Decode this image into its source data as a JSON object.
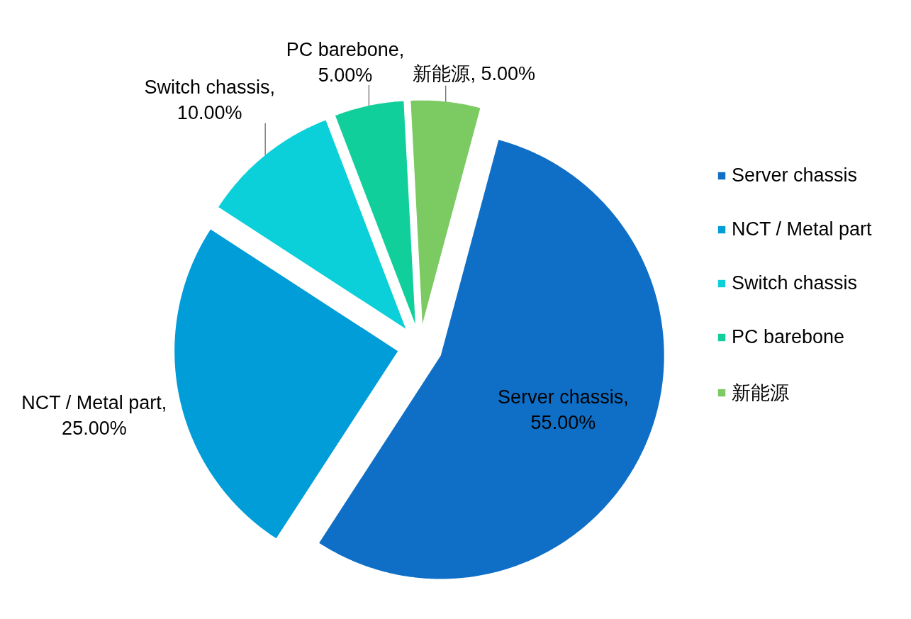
{
  "chart_data": {
    "type": "pie",
    "categories": [
      "Server chassis",
      "NCT / Metal part",
      "Switch chassis",
      "PC barebone",
      "新能源"
    ],
    "values": [
      55,
      25,
      10,
      5,
      5
    ],
    "colors": [
      "#0f6fc6",
      "#009dd9",
      "#0bd0d9",
      "#10cf9b",
      "#7cca62"
    ],
    "value_labels": [
      "Server chassis, 55.00%",
      "NCT / Metal part, 25.00%",
      "Switch chassis, 10.00%",
      "PC barebone, 5.00%",
      "新能源, 5.00%"
    ],
    "legend": "right"
  }
}
